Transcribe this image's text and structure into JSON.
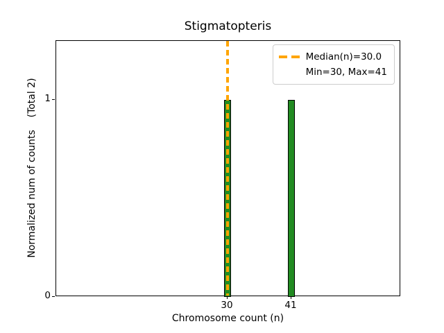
{
  "accent_color": "#FFA500",
  "chart_data": {
    "type": "bar",
    "title": "Stigmatopteris",
    "xlabel": "Chromosome count (n)",
    "ylabel": "Normalized num of counts    (Total 2)",
    "categories": [
      30,
      41
    ],
    "values": [
      1,
      1
    ],
    "total_counts": 2,
    "bar_color": "#228B22",
    "bar_edge_color": "#000000",
    "median_line": {
      "x": 30,
      "color": "#FFA500",
      "style": "dashed",
      "label": "Median(n)=30.0"
    },
    "min": 30,
    "max": 41,
    "xticks": [
      30,
      41
    ],
    "yticks": [
      0,
      1
    ],
    "xlim": [
      0.6,
      59.9
    ],
    "ylim": [
      0,
      1.3
    ],
    "grid": false,
    "legend_position": "upper right",
    "legend": [
      "Median(n)=30.0",
      "Min=30, Max=41"
    ]
  }
}
